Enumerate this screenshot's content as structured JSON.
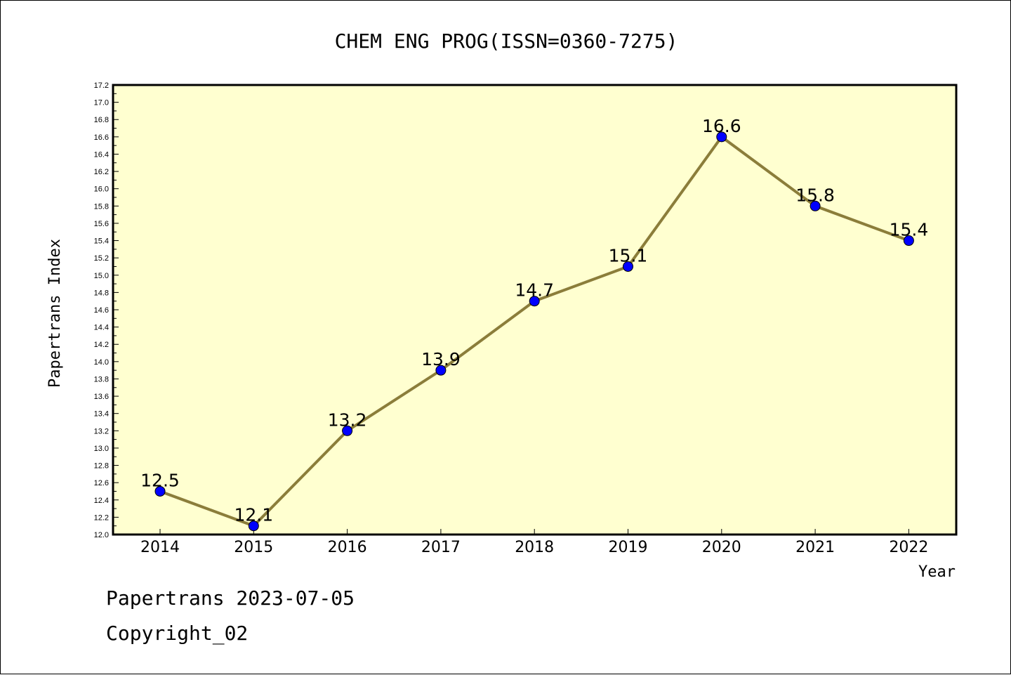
{
  "chart_data": {
    "type": "line",
    "title": "CHEM ENG PROG(ISSN=0360-7275)",
    "xlabel": "Year",
    "ylabel": "Papertrans Index",
    "categories": [
      "2014",
      "2015",
      "2016",
      "2017",
      "2018",
      "2019",
      "2020",
      "2021",
      "2022"
    ],
    "series": [
      {
        "values": [
          12.5,
          12.1,
          13.2,
          13.9,
          14.7,
          15.1,
          16.6,
          15.8,
          15.4
        ],
        "labels": [
          "12.5",
          "12.1",
          "13.2",
          "13.9",
          "14.7",
          "15.1",
          "16.6",
          "15.8",
          "15.4"
        ]
      }
    ],
    "ylim": [
      12.0,
      17.2
    ],
    "yticks": [
      "12.0",
      "12.2",
      "12.4",
      "12.6",
      "12.8",
      "13.0",
      "13.2",
      "13.4",
      "13.6",
      "13.8",
      "14.0",
      "14.2",
      "14.4",
      "14.6",
      "14.8",
      "15.0",
      "15.2",
      "15.4",
      "15.6",
      "15.8",
      "16.0",
      "16.2",
      "16.4",
      "16.6",
      "16.8",
      "17.0",
      "17.2"
    ],
    "grid": false,
    "colors": {
      "line": "#8b7d3a",
      "marker": "#0000ff",
      "plot_bg": "#ffffd0"
    }
  },
  "footer": {
    "line1": "Papertrans 2023-07-05",
    "line2": "Copyright_02"
  }
}
